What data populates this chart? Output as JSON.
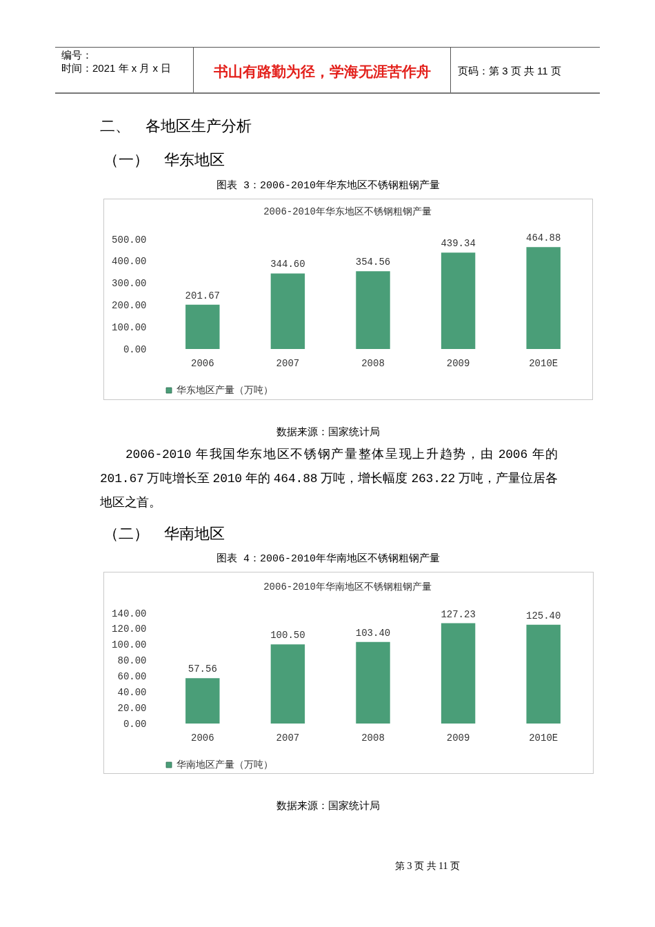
{
  "chart_data": [
    {
      "type": "bar",
      "title": "图表 3：2006-2010年华东地区不锈钢粗钢产量",
      "subtitle": "2006-2010年华东地区不锈钢粗钢产量",
      "categories": [
        "2006",
        "2007",
        "2008",
        "2009",
        "2010E"
      ],
      "series": [
        {
          "name": "华东地区产量（万吨）",
          "color": "#4a9e78",
          "values": [
            201.67,
            344.6,
            354.56,
            439.34,
            464.88
          ],
          "value_labels": [
            "201.67",
            "344.60",
            "354.56",
            "439.34",
            "464.88"
          ]
        }
      ],
      "ylim": [
        0,
        500
      ],
      "yticks": [
        {
          "value": 0,
          "label": "0.00"
        },
        {
          "value": 100,
          "label": "100.00"
        },
        {
          "value": 200,
          "label": "200.00"
        },
        {
          "value": 300,
          "label": "300.00"
        },
        {
          "value": 400,
          "label": "400.00"
        },
        {
          "value": 500,
          "label": "500.00"
        }
      ],
      "legend": "bottom left",
      "annotations": [
        "编号：",
        "时间：2021 年 x 月 x 日",
        "书山有路勤为径，学海无涯苦作舟",
        "页码：第 3 页 共 11 页",
        "二、　各地区生产分析",
        "（一）　华东地区",
        "数据来源：国家统计局",
        "2006-2010 年我国华东地区不锈钢产量整体呈现上升趋势，由 2006 年的 201.67 万吨增长至 2010 年的 464.88 万吨，增长幅度 263.22 万吨，产量位居各地区之首。"
      ]
    },
    {
      "type": "bar",
      "title": "图表 4：2006-2010年华南地区不锈钢粗钢产量",
      "subtitle": "2006-2010年华南地区不锈钢粗钢产量",
      "categories": [
        "2006",
        "2007",
        "2008",
        "2009",
        "2010E"
      ],
      "series": [
        {
          "name": "华南地区产量（万吨）",
          "color": "#4a9e78",
          "values": [
            57.56,
            100.5,
            103.4,
            127.23,
            125.4
          ],
          "value_labels": [
            "57.56",
            "100.50",
            "103.40",
            "127.23",
            "125.40"
          ]
        }
      ],
      "ylim": [
        0,
        140
      ],
      "yticks": [
        {
          "value": 0,
          "label": "0.00"
        },
        {
          "value": 20,
          "label": "20.00"
        },
        {
          "value": 40,
          "label": "40.00"
        },
        {
          "value": 60,
          "label": "60.00"
        },
        {
          "value": 80,
          "label": "80.00"
        },
        {
          "value": 100,
          "label": "100.00"
        },
        {
          "value": 120,
          "label": "120.00"
        },
        {
          "value": 140,
          "label": "140.00"
        }
      ],
      "legend": "bottom left",
      "annotations": [
        "（二）　华南地区",
        "数据来源：国家统计局",
        "第 3 页 共 11 页"
      ]
    }
  ]
}
